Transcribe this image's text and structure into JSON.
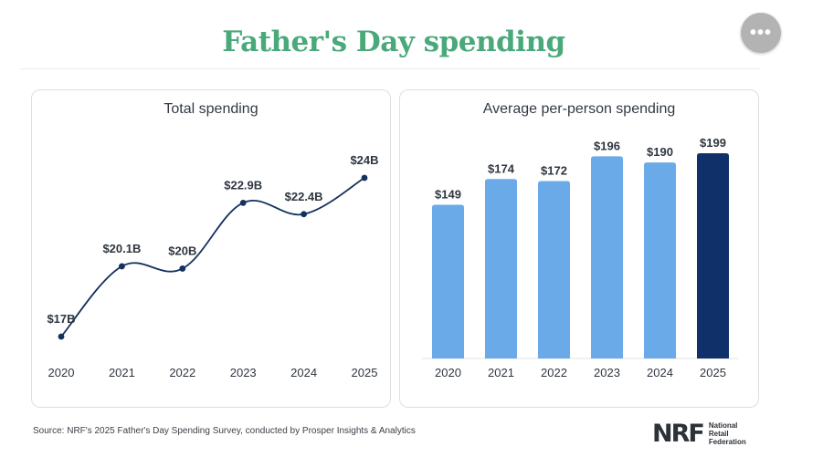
{
  "title": "Father's Day spending",
  "menu_icon": "more-horizontal-icon",
  "menu_glyph": "•••",
  "source": "Source: NRF's 2025 Father's Day Spending Survey, conducted by Prosper Insights & Analytics",
  "logo": {
    "mark": "NRF",
    "name_lines": [
      "National",
      "Retail",
      "Federation"
    ]
  },
  "colors": {
    "title": "#4aa97a",
    "line": "#14315f",
    "bar": "#6aaae8",
    "bar_highlight": "#10306a"
  },
  "chart_data": [
    {
      "type": "line",
      "title": "Total spending",
      "categories": [
        "2020",
        "2021",
        "2022",
        "2023",
        "2024",
        "2025"
      ],
      "values": [
        17,
        20.1,
        20,
        22.9,
        22.4,
        24
      ],
      "labels": [
        "$17B",
        "$20.1B",
        "$20B",
        "$22.9B",
        "$22.4B",
        "$24B"
      ],
      "unit": "billion USD",
      "grid": false,
      "legend": "none"
    },
    {
      "type": "bar",
      "title": "Average per-person spending",
      "categories": [
        "2020",
        "2021",
        "2022",
        "2023",
        "2024",
        "2025"
      ],
      "values": [
        149,
        174,
        172,
        196,
        190,
        199
      ],
      "labels": [
        "$149",
        "$174",
        "$172",
        "$196",
        "$190",
        "$199"
      ],
      "highlight": "2025",
      "unit": "USD",
      "ylim": [
        0,
        199
      ],
      "grid": false,
      "legend": "none"
    }
  ]
}
